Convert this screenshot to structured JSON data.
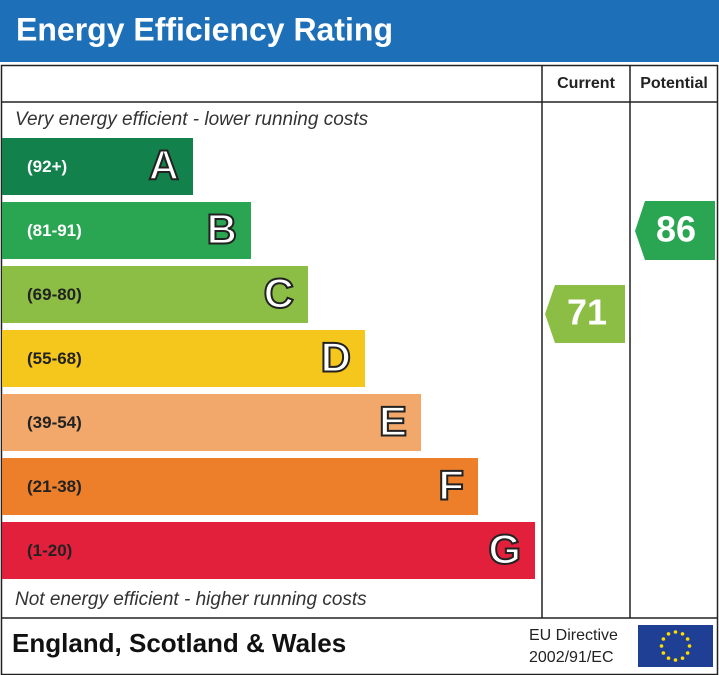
{
  "header": {
    "title": "Energy Efficiency Rating"
  },
  "columns": [
    "Current",
    "Potential"
  ],
  "top_note": "Very energy efficient - lower running costs",
  "bands": [
    {
      "range": "(92+)",
      "letter": "A"
    },
    {
      "range": "(81-91)",
      "letter": "B"
    },
    {
      "range": "(69-80)",
      "letter": "C"
    },
    {
      "range": "(55-68)",
      "letter": "D"
    },
    {
      "range": "(39-54)",
      "letter": "E"
    },
    {
      "range": "(21-38)",
      "letter": "F"
    },
    {
      "range": "(1-20)",
      "letter": "G"
    }
  ],
  "current": {
    "value": 71
  },
  "potential": {
    "value": 86
  },
  "bottom_note": "Not energy efficient - higher running costs",
  "footer": {
    "region": "England, Scotland & Wales",
    "directive": [
      "EU Directive",
      "2002/91/EC"
    ]
  }
}
